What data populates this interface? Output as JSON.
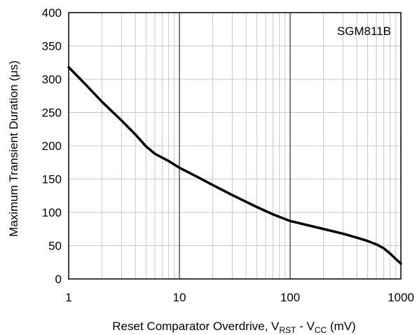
{
  "chart_data": {
    "type": "line",
    "title": "",
    "xlabel": "Reset Comparator Overdrive, V",
    "xlabel_sub1": "RST",
    "xlabel_mid": " - V",
    "xlabel_sub2": "CC",
    "xlabel_end": " (mV)",
    "ylabel": "Maximum Transient Duration (μs)",
    "annotation": "SGM811B",
    "xscale": "log",
    "xlim": [
      1,
      1000
    ],
    "ylim": [
      0,
      400
    ],
    "xticks": [
      1,
      10,
      100,
      1000
    ],
    "xtick_labels": [
      "1",
      "10",
      "100",
      "1000"
    ],
    "yticks": [
      0,
      50,
      100,
      150,
      200,
      250,
      300,
      350,
      400
    ],
    "ytick_labels": [
      "0",
      "50",
      "100",
      "150",
      "200",
      "250",
      "300",
      "350",
      "400"
    ],
    "grid": true,
    "series": [
      {
        "name": "",
        "x": [
          1,
          1.5,
          2,
          3,
          4,
          5,
          6,
          8,
          10,
          15,
          20,
          30,
          50,
          70,
          100,
          150,
          200,
          300,
          400,
          500,
          600,
          700,
          800,
          900,
          1000
        ],
        "y": [
          318,
          288,
          266,
          238,
          217,
          199,
          188,
          177,
          167,
          152,
          141,
          126,
          108,
          97,
          87,
          80,
          75,
          68,
          62,
          57,
          52,
          46,
          38,
          30,
          23
        ]
      }
    ],
    "colors": {
      "line": "#000000",
      "grid": "#c8c8c8",
      "major_grid": "#000000",
      "frame": "#000000"
    }
  }
}
